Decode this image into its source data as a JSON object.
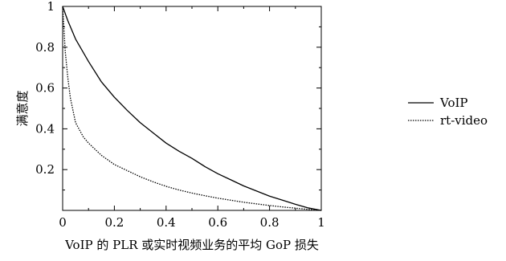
{
  "chart_data": {
    "type": "line",
    "xlabel": "VoIP 的 PLR 或实时视频业务的平均 GoP 损失",
    "ylabel": "满意度",
    "xlim": [
      0,
      1
    ],
    "ylim": [
      0,
      1
    ],
    "x_ticks": [
      "0",
      "0.2",
      "0.4",
      "0.6",
      "0.8",
      "1"
    ],
    "x_tick_values": [
      0,
      0.2,
      0.4,
      0.6,
      0.8,
      1
    ],
    "y_ticks": [
      "0.2",
      "0.4",
      "0.6",
      "0.8",
      "1"
    ],
    "y_tick_values": [
      0.2,
      0.4,
      0.6,
      0.8,
      1
    ],
    "legend_position": "right",
    "grid": false,
    "series": [
      {
        "name": "VoIP",
        "style": "solid",
        "color": "#000000",
        "x": [
          0,
          0.02,
          0.05,
          0.1,
          0.15,
          0.2,
          0.25,
          0.3,
          0.35,
          0.4,
          0.45,
          0.5,
          0.55,
          0.6,
          0.65,
          0.7,
          0.75,
          0.8,
          0.85,
          0.9,
          0.95,
          1.0
        ],
        "y": [
          1.0,
          0.93,
          0.84,
          0.73,
          0.63,
          0.555,
          0.49,
          0.43,
          0.38,
          0.33,
          0.29,
          0.255,
          0.215,
          0.18,
          0.15,
          0.12,
          0.095,
          0.07,
          0.05,
          0.03,
          0.012,
          0.0
        ]
      },
      {
        "name": "rt-video",
        "style": "dotted",
        "color": "#000000",
        "x": [
          0,
          0.01,
          0.02,
          0.03,
          0.05,
          0.08,
          0.1,
          0.15,
          0.2,
          0.25,
          0.3,
          0.35,
          0.4,
          0.45,
          0.5,
          0.55,
          0.6,
          0.65,
          0.7,
          0.75,
          0.8,
          0.85,
          0.9,
          0.95,
          1.0
        ],
        "y": [
          1.0,
          0.78,
          0.65,
          0.55,
          0.43,
          0.36,
          0.33,
          0.27,
          0.225,
          0.195,
          0.165,
          0.14,
          0.118,
          0.1,
          0.085,
          0.072,
          0.06,
          0.05,
          0.04,
          0.032,
          0.024,
          0.017,
          0.011,
          0.005,
          0.0
        ]
      }
    ]
  }
}
